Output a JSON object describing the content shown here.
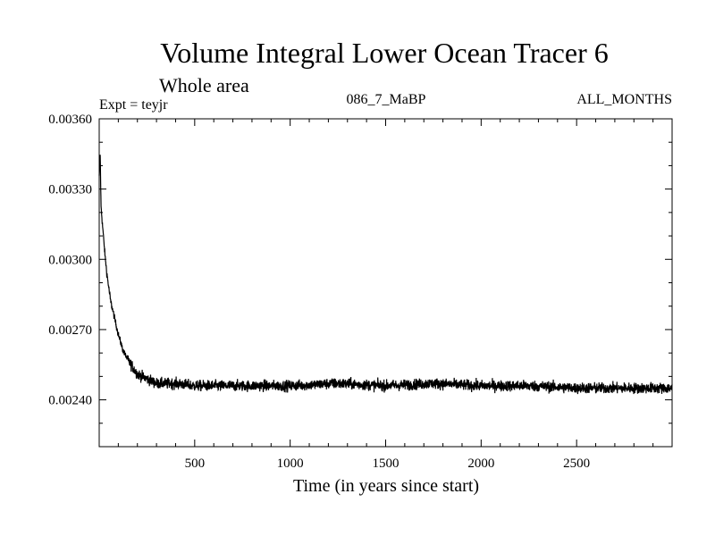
{
  "chart_data": {
    "type": "line",
    "title": "Volume Integral Lower Ocean Tracer 6",
    "subtitle": "Whole area",
    "experiment_label": "Expt = teyjr",
    "run_label": "086_7_MaBP",
    "months_label": "ALL_MONTHS",
    "xlabel": "Time (in years since start)",
    "ylabel": "",
    "xlim": [
      0,
      3000
    ],
    "ylim": [
      0.0022,
      0.0036
    ],
    "x_ticks": [
      {
        "value": 500,
        "label": "500"
      },
      {
        "value": 1000,
        "label": "1000"
      },
      {
        "value": 1500,
        "label": "1500"
      },
      {
        "value": 2000,
        "label": "2000"
      },
      {
        "value": 2500,
        "label": "2500"
      }
    ],
    "y_ticks": [
      {
        "value": 0.0024,
        "label": "0.00240"
      },
      {
        "value": 0.0027,
        "label": "0.00270"
      },
      {
        "value": 0.003,
        "label": "0.00300"
      },
      {
        "value": 0.0033,
        "label": "0.00330"
      },
      {
        "value": 0.0036,
        "label": "0.00360"
      }
    ],
    "series": [
      {
        "name": "Lower Ocean Tracer 6",
        "x": [
          0,
          5,
          10,
          20,
          30,
          40,
          50,
          60,
          80,
          100,
          125,
          150,
          175,
          200,
          250,
          300,
          400,
          500,
          750,
          1000,
          1250,
          1500,
          1750,
          2000,
          2250,
          2500,
          2750,
          3000
        ],
        "values": [
          0.00335,
          0.00345,
          0.00322,
          0.00312,
          0.00302,
          0.00294,
          0.00288,
          0.00282,
          0.00275,
          0.00268,
          0.00261,
          0.00257,
          0.00254,
          0.00251,
          0.00249,
          0.00247,
          0.00247,
          0.00246,
          0.00246,
          0.00246,
          0.00247,
          0.00246,
          0.00247,
          0.00246,
          0.00246,
          0.00245,
          0.00245,
          0.00245
        ],
        "noise_amplitude": 4e-05
      }
    ]
  }
}
